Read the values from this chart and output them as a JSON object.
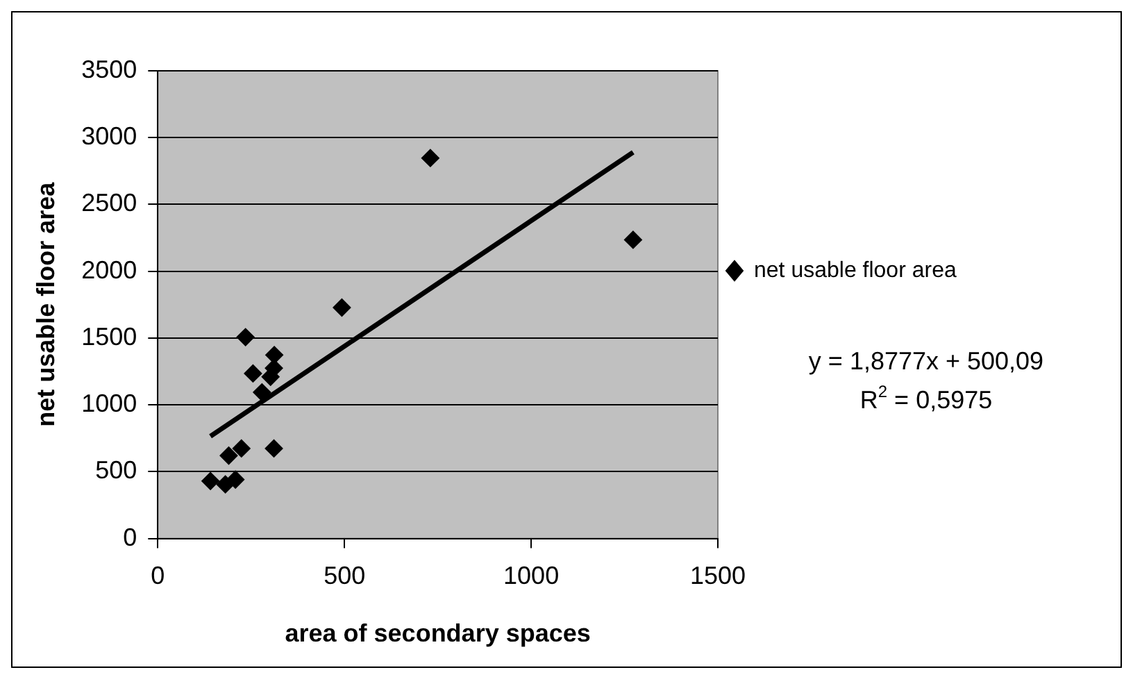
{
  "chart_data": {
    "type": "scatter",
    "xlabel": "area of secondary spaces",
    "ylabel": "net usable floor area",
    "xlim": [
      0,
      1500
    ],
    "xticks": [
      0,
      500,
      1000,
      1500
    ],
    "ylim": [
      0,
      3500
    ],
    "yticks": [
      0,
      500,
      1000,
      1500,
      2000,
      2500,
      3000,
      3500
    ],
    "grid": "y",
    "legend": "right",
    "marker": "diamond",
    "annotations": [
      "y = 1,8777x + 500,09",
      "R$^{2}$ = 0,5975"
    ],
    "series": [
      {
        "name": "net usable floor area",
        "color": "#000000",
        "x": [
          141,
          181,
          208,
          190,
          224,
          311,
          235,
          255,
          279,
          302,
          311,
          312,
          493,
          730,
          1273
        ],
        "values": [
          430,
          405,
          441,
          620,
          674,
          674,
          1507,
          1235,
          1094,
          1210,
          1275,
          1373,
          1728,
          2847,
          2235
        ]
      },
      {
        "type": "line",
        "color": "#000000",
        "x": [
          141,
          1273
        ],
        "values": [
          764.8,
          2890.4
        ],
        "marker": "none"
      }
    ]
  }
}
